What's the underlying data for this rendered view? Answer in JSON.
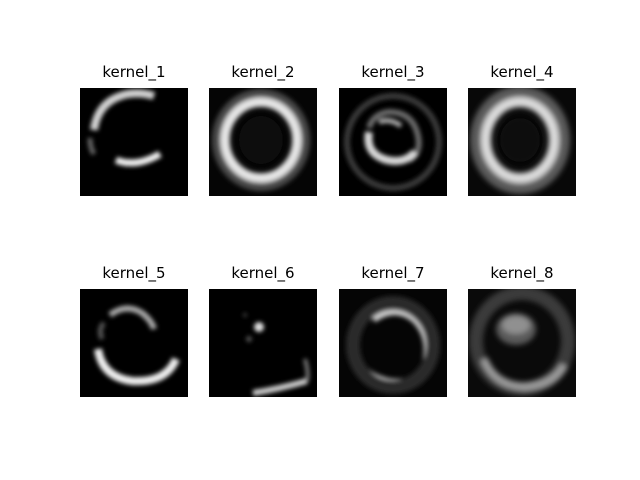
{
  "figure": {
    "panels": [
      {
        "title": "kernel_1",
        "icon": "kernel-1-image"
      },
      {
        "title": "kernel_2",
        "icon": "kernel-2-image"
      },
      {
        "title": "kernel_3",
        "icon": "kernel-3-image"
      },
      {
        "title": "kernel_4",
        "icon": "kernel-4-image"
      },
      {
        "title": "kernel_5",
        "icon": "kernel-5-image"
      },
      {
        "title": "kernel_6",
        "icon": "kernel-6-image"
      },
      {
        "title": "kernel_7",
        "icon": "kernel-7-image"
      },
      {
        "title": "kernel_8",
        "icon": "kernel-8-image"
      }
    ],
    "colors": {
      "background": "#ffffff",
      "image_background": "#000000",
      "ring": "#f0f0f0"
    }
  }
}
